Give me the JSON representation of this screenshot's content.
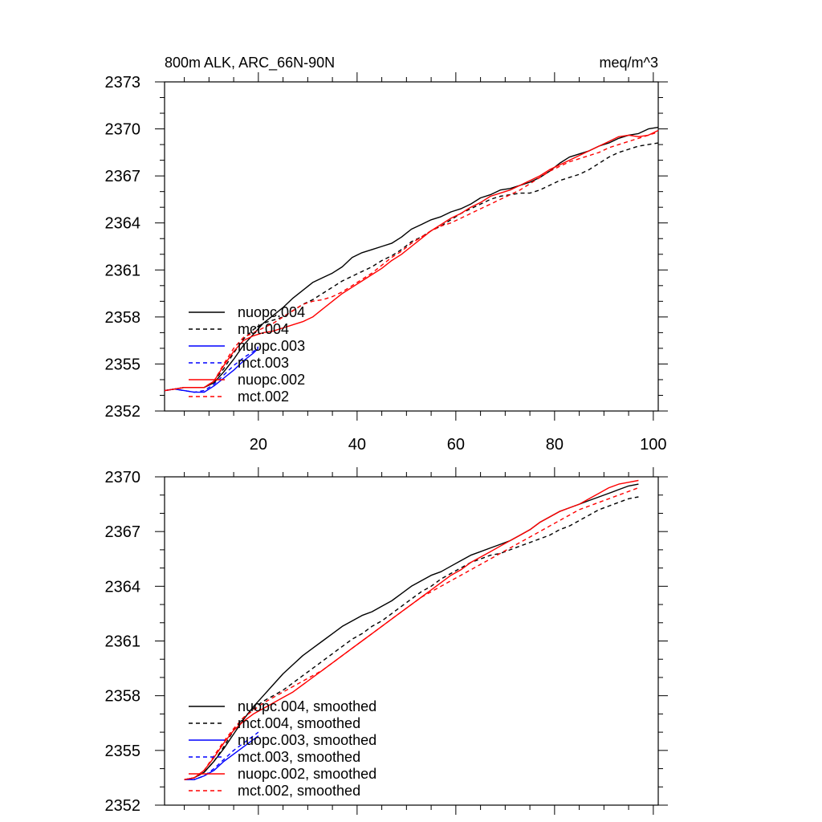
{
  "chart_data": [
    {
      "type": "line",
      "title_left": "800m ALK, ARC_66N-90N",
      "title_right": "meq/m^3",
      "xlim": [
        1,
        101
      ],
      "ylim": [
        2352,
        2373
      ],
      "xticks": [
        20,
        40,
        60,
        80,
        100
      ],
      "yticks": [
        2352,
        2355,
        2358,
        2361,
        2364,
        2367,
        2370,
        2373
      ],
      "xtick_labels_shown": true,
      "legend_position": "bottom-left",
      "series": [
        {
          "name": "nuopc.004",
          "color": "#000000",
          "dash": "solid",
          "x": [
            1,
            3,
            5,
            7,
            9,
            11,
            13,
            15,
            17,
            19,
            21,
            23,
            25,
            27,
            29,
            31,
            33,
            35,
            37,
            39,
            41,
            43,
            45,
            47,
            49,
            51,
            53,
            55,
            57,
            59,
            61,
            63,
            65,
            67,
            69,
            71,
            73,
            75,
            77,
            79,
            81,
            83,
            85,
            87,
            89,
            91,
            93,
            95,
            97,
            99,
            101
          ],
          "y": [
            2353.3,
            2353.4,
            2353.5,
            2353.5,
            2353.5,
            2353.8,
            2354.5,
            2355.3,
            2356.2,
            2356.9,
            2357.6,
            2358.1,
            2358.6,
            2359.2,
            2359.7,
            2360.2,
            2360.5,
            2360.8,
            2361.2,
            2361.8,
            2362.1,
            2362.3,
            2362.5,
            2362.7,
            2363.1,
            2363.6,
            2363.9,
            2364.2,
            2364.4,
            2364.7,
            2364.9,
            2365.2,
            2365.6,
            2365.8,
            2366.1,
            2366.2,
            2366.4,
            2366.6,
            2366.9,
            2367.3,
            2367.8,
            2368.2,
            2368.4,
            2368.6,
            2368.9,
            2369.1,
            2369.4,
            2369.6,
            2369.7,
            2370.0,
            2370.1
          ]
        },
        {
          "name": "mct.004",
          "color": "#000000",
          "dash": "dashed",
          "x": [
            1,
            3,
            5,
            7,
            9,
            11,
            13,
            15,
            17,
            19,
            21,
            23,
            25,
            27,
            29,
            31,
            33,
            35,
            37,
            39,
            41,
            43,
            45,
            47,
            49,
            51,
            53,
            55,
            57,
            59,
            61,
            63,
            65,
            67,
            69,
            71,
            73,
            75,
            77,
            79,
            81,
            83,
            85,
            87,
            89,
            91,
            93,
            95,
            97,
            99,
            101
          ],
          "y": [
            2353.3,
            2353.4,
            2353.5,
            2353.5,
            2353.5,
            2353.9,
            2354.7,
            2355.7,
            2356.6,
            2357.2,
            2357.6,
            2357.8,
            2358.0,
            2358.4,
            2358.8,
            2359.1,
            2359.5,
            2359.9,
            2360.3,
            2360.6,
            2360.9,
            2361.2,
            2361.6,
            2361.9,
            2362.3,
            2362.8,
            2363.1,
            2363.5,
            2363.8,
            2364.2,
            2364.6,
            2364.9,
            2365.2,
            2365.5,
            2365.7,
            2365.8,
            2365.9,
            2365.9,
            2366.1,
            2366.4,
            2366.7,
            2366.9,
            2367.1,
            2367.4,
            2367.8,
            2368.2,
            2368.5,
            2368.7,
            2368.9,
            2369.0,
            2369.1
          ]
        },
        {
          "name": "nuopc.003",
          "color": "#0000ff",
          "dash": "solid",
          "x": [
            1,
            3,
            5,
            7,
            9,
            11,
            13,
            15,
            17,
            19,
            20
          ],
          "y": [
            2353.3,
            2353.4,
            2353.3,
            2353.2,
            2353.2,
            2353.6,
            2354.1,
            2354.6,
            2355.2,
            2355.7,
            2356.0
          ]
        },
        {
          "name": "mct.003",
          "color": "#0000ff",
          "dash": "dashed",
          "x": [
            1,
            3,
            5,
            7,
            9,
            11,
            13,
            15,
            17,
            19,
            20
          ],
          "y": [
            2353.3,
            2353.4,
            2353.3,
            2353.2,
            2353.3,
            2353.7,
            2354.3,
            2354.9,
            2355.4,
            2355.8,
            2356.1
          ]
        },
        {
          "name": "nuopc.002",
          "color": "#ff0000",
          "dash": "solid",
          "x": [
            1,
            3,
            5,
            7,
            9,
            11,
            13,
            15,
            17,
            19,
            21,
            23,
            25,
            27,
            29,
            31,
            33,
            35,
            37,
            39,
            41,
            43,
            45,
            47,
            49,
            51,
            53,
            55,
            57,
            59,
            61,
            63,
            65,
            67,
            69,
            71,
            73,
            75,
            77,
            79,
            81,
            83,
            85,
            87,
            89,
            91,
            93,
            95,
            97,
            99,
            101
          ],
          "y": [
            2353.3,
            2353.4,
            2353.5,
            2353.5,
            2353.5,
            2353.9,
            2354.9,
            2355.8,
            2356.5,
            2356.8,
            2357.0,
            2357.1,
            2357.3,
            2357.5,
            2357.7,
            2358.0,
            2358.5,
            2359.0,
            2359.5,
            2359.9,
            2360.3,
            2360.7,
            2361.1,
            2361.6,
            2362.0,
            2362.5,
            2363.0,
            2363.5,
            2363.9,
            2364.3,
            2364.6,
            2365.0,
            2365.3,
            2365.7,
            2365.9,
            2366.1,
            2366.4,
            2366.7,
            2367.0,
            2367.4,
            2367.7,
            2368.0,
            2368.3,
            2368.6,
            2368.9,
            2369.2,
            2369.5,
            2369.6,
            2369.5,
            2369.6,
            2369.9
          ]
        },
        {
          "name": "mct.002",
          "color": "#ff0000",
          "dash": "dashed",
          "x": [
            1,
            3,
            5,
            7,
            9,
            11,
            13,
            15,
            17,
            19,
            21,
            23,
            25,
            27,
            29,
            31,
            33,
            35,
            37,
            39,
            41,
            43,
            45,
            47,
            49,
            51,
            53,
            55,
            57,
            59,
            61,
            63,
            65,
            67,
            69,
            71,
            73,
            75,
            77,
            79,
            81,
            83,
            85,
            87,
            89,
            91,
            93,
            95,
            97,
            99,
            101
          ],
          "y": [
            2353.3,
            2353.4,
            2353.5,
            2353.5,
            2353.5,
            2353.9,
            2355.0,
            2356.0,
            2356.7,
            2357.0,
            2357.3,
            2357.6,
            2358.0,
            2358.4,
            2358.8,
            2359.0,
            2359.1,
            2359.3,
            2359.6,
            2360.0,
            2360.4,
            2360.8,
            2361.3,
            2361.8,
            2362.2,
            2362.7,
            2363.1,
            2363.5,
            2363.8,
            2364.0,
            2364.3,
            2364.6,
            2364.9,
            2365.2,
            2365.5,
            2365.8,
            2366.1,
            2366.5,
            2366.9,
            2367.3,
            2367.6,
            2367.9,
            2368.1,
            2368.3,
            2368.5,
            2368.8,
            2369.0,
            2369.2,
            2369.4,
            2369.6,
            2369.8
          ]
        }
      ]
    },
    {
      "type": "line",
      "xlim": [
        1,
        101
      ],
      "ylim": [
        2352,
        2370
      ],
      "xticks": [
        20,
        40,
        60,
        80,
        100
      ],
      "yticks": [
        2352,
        2355,
        2358,
        2361,
        2364,
        2367,
        2370
      ],
      "xtick_labels_shown": false,
      "legend_position": "bottom-left",
      "series": [
        {
          "name": "nuopc.004, smoothed",
          "color": "#000000",
          "dash": "solid",
          "x": [
            5,
            7,
            9,
            11,
            13,
            15,
            17,
            19,
            21,
            23,
            25,
            27,
            29,
            31,
            33,
            35,
            37,
            39,
            41,
            43,
            45,
            47,
            49,
            51,
            53,
            55,
            57,
            59,
            61,
            63,
            65,
            67,
            69,
            71,
            73,
            75,
            77,
            79,
            81,
            83,
            85,
            87,
            89,
            91,
            93,
            95,
            97
          ],
          "y": [
            2353.4,
            2353.5,
            2353.8,
            2354.4,
            2355.1,
            2355.9,
            2356.7,
            2357.4,
            2358.0,
            2358.6,
            2359.2,
            2359.7,
            2360.2,
            2360.6,
            2361.0,
            2361.4,
            2361.8,
            2362.1,
            2362.4,
            2362.6,
            2362.9,
            2363.2,
            2363.6,
            2364.0,
            2364.3,
            2364.6,
            2364.8,
            2365.1,
            2365.4,
            2365.7,
            2365.9,
            2366.1,
            2366.3,
            2366.5,
            2366.8,
            2367.1,
            2367.5,
            2367.8,
            2368.1,
            2368.3,
            2368.5,
            2368.7,
            2368.9,
            2369.1,
            2369.3,
            2369.5,
            2369.6
          ]
        },
        {
          "name": "mct.004, smoothed",
          "color": "#000000",
          "dash": "dashed",
          "x": [
            5,
            7,
            9,
            11,
            13,
            15,
            17,
            19,
            21,
            23,
            25,
            27,
            29,
            31,
            33,
            35,
            37,
            39,
            41,
            43,
            45,
            47,
            49,
            51,
            53,
            55,
            57,
            59,
            61,
            63,
            65,
            67,
            69,
            71,
            73,
            75,
            77,
            79,
            81,
            83,
            85,
            87,
            89,
            91,
            93,
            95,
            97
          ],
          "y": [
            2353.4,
            2353.5,
            2353.8,
            2354.4,
            2355.2,
            2356.1,
            2356.8,
            2357.3,
            2357.7,
            2358.0,
            2358.3,
            2358.7,
            2359.1,
            2359.5,
            2359.9,
            2360.3,
            2360.7,
            2361.1,
            2361.4,
            2361.8,
            2362.1,
            2362.5,
            2362.9,
            2363.3,
            2363.7,
            2364.0,
            2364.4,
            2364.7,
            2365.0,
            2365.3,
            2365.5,
            2365.7,
            2365.8,
            2366.0,
            2366.2,
            2366.4,
            2366.6,
            2366.8,
            2367.1,
            2367.3,
            2367.6,
            2367.9,
            2368.2,
            2368.4,
            2368.6,
            2368.8,
            2368.9
          ]
        },
        {
          "name": "nuopc.003, smoothed",
          "color": "#0000ff",
          "dash": "solid",
          "x": [
            5,
            7,
            9,
            11,
            13,
            15,
            17,
            19,
            20
          ],
          "y": [
            2353.4,
            2353.4,
            2353.6,
            2353.9,
            2354.4,
            2354.8,
            2355.2,
            2355.6,
            2355.8
          ]
        },
        {
          "name": "mct.003, smoothed",
          "color": "#0000ff",
          "dash": "dashed",
          "x": [
            5,
            7,
            9,
            11,
            13,
            15,
            17,
            19,
            20
          ],
          "y": [
            2353.4,
            2353.4,
            2353.6,
            2354.0,
            2354.5,
            2355.0,
            2355.4,
            2355.8,
            2356.0
          ]
        },
        {
          "name": "nuopc.002, smoothed",
          "color": "#ff0000",
          "dash": "solid",
          "x": [
            5,
            7,
            9,
            11,
            13,
            15,
            17,
            19,
            21,
            23,
            25,
            27,
            29,
            31,
            33,
            35,
            37,
            39,
            41,
            43,
            45,
            47,
            49,
            51,
            53,
            55,
            57,
            59,
            61,
            63,
            65,
            67,
            69,
            71,
            73,
            75,
            77,
            79,
            81,
            83,
            85,
            87,
            89,
            91,
            93,
            95,
            97
          ],
          "y": [
            2353.4,
            2353.5,
            2353.9,
            2354.6,
            2355.4,
            2356.1,
            2356.6,
            2357.0,
            2357.3,
            2357.6,
            2357.9,
            2358.2,
            2358.6,
            2359.0,
            2359.4,
            2359.8,
            2360.2,
            2360.6,
            2361.0,
            2361.4,
            2361.8,
            2362.2,
            2362.6,
            2363.0,
            2363.4,
            2363.8,
            2364.2,
            2364.6,
            2364.9,
            2365.3,
            2365.6,
            2365.9,
            2366.2,
            2366.5,
            2366.8,
            2367.1,
            2367.5,
            2367.8,
            2368.1,
            2368.3,
            2368.5,
            2368.8,
            2369.1,
            2369.4,
            2369.6,
            2369.7,
            2369.8
          ]
        },
        {
          "name": "mct.002, smoothed",
          "color": "#ff0000",
          "dash": "dashed",
          "x": [
            5,
            7,
            9,
            11,
            13,
            15,
            17,
            19,
            21,
            23,
            25,
            27,
            29,
            31,
            33,
            35,
            37,
            39,
            41,
            43,
            45,
            47,
            49,
            51,
            53,
            55,
            57,
            59,
            61,
            63,
            65,
            67,
            69,
            71,
            73,
            75,
            77,
            79,
            81,
            83,
            85,
            87,
            89,
            91,
            93,
            95,
            97
          ],
          "y": [
            2353.4,
            2353.5,
            2353.9,
            2354.7,
            2355.5,
            2356.2,
            2356.8,
            2357.2,
            2357.6,
            2357.9,
            2358.2,
            2358.5,
            2358.8,
            2359.1,
            2359.4,
            2359.8,
            2360.2,
            2360.6,
            2361.0,
            2361.4,
            2361.8,
            2362.2,
            2362.6,
            2363.0,
            2363.4,
            2363.7,
            2364.0,
            2364.3,
            2364.6,
            2364.9,
            2365.2,
            2365.5,
            2365.8,
            2366.1,
            2366.4,
            2366.7,
            2367.0,
            2367.3,
            2367.6,
            2367.9,
            2368.2,
            2368.4,
            2368.6,
            2368.8,
            2369.0,
            2369.2,
            2369.4
          ]
        }
      ]
    }
  ]
}
